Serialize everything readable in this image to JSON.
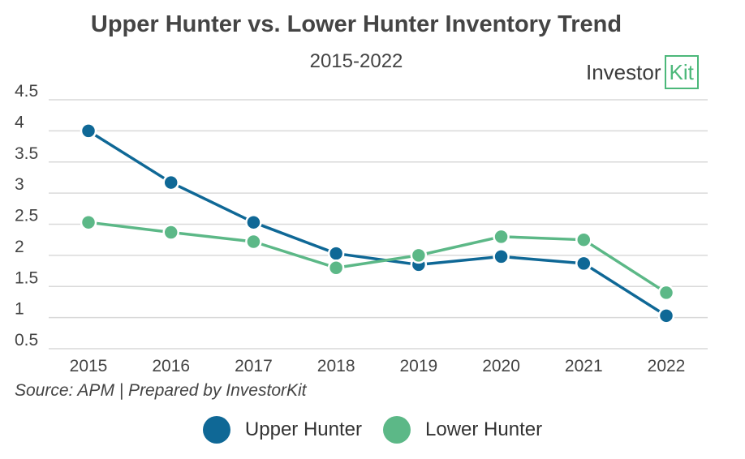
{
  "header": {
    "title": "Upper Hunter vs. Lower Hunter Inventory Trend",
    "subtitle": "2015-2022"
  },
  "logo": {
    "text_main": "Investor",
    "text_boxed": "Kit"
  },
  "footer": {
    "source": "Source: APM | Prepared by InvestorKit"
  },
  "chart_data": {
    "type": "line",
    "categories": [
      "2015",
      "2016",
      "2017",
      "2018",
      "2019",
      "2020",
      "2021",
      "2022"
    ],
    "y_ticks": [
      "4.5",
      "4",
      "3.5",
      "3",
      "2.5",
      "2",
      "1.5",
      "1",
      "0.5"
    ],
    "ylim": [
      0.5,
      4.5
    ],
    "grid": true,
    "legend_position": "bottom",
    "series": [
      {
        "name": "Upper Hunter",
        "color": "#0f6896",
        "values": [
          4.0,
          3.17,
          2.53,
          2.03,
          1.85,
          1.98,
          1.87,
          1.03
        ]
      },
      {
        "name": "Lower Hunter",
        "color": "#5cb887",
        "values": [
          2.53,
          2.37,
          2.22,
          1.8,
          2.0,
          2.3,
          2.25,
          1.4
        ]
      }
    ]
  }
}
